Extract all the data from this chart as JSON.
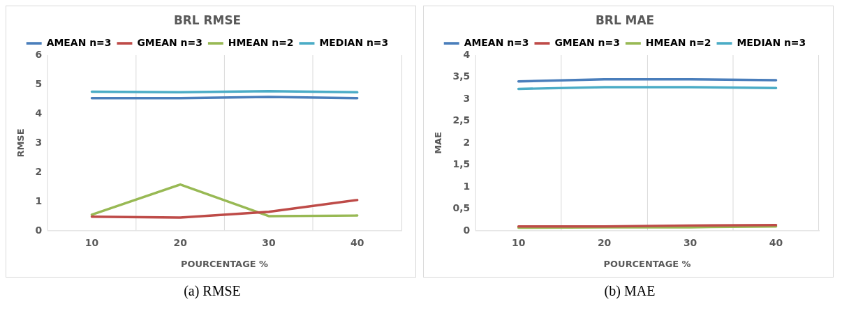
{
  "chart_data": [
    {
      "type": "line",
      "title": "BRL RMSE",
      "xlabel": "POURCENTAGE %",
      "ylabel": "RMSE",
      "categories": [
        "10",
        "20",
        "30",
        "40"
      ],
      "series": [
        {
          "name": "AMEAN n=3",
          "color": "#4a7ebb",
          "values": [
            4.53,
            4.53,
            4.57,
            4.53
          ]
        },
        {
          "name": "GMEAN n=3",
          "color": "#be4b48",
          "values": [
            0.48,
            0.45,
            0.65,
            1.05
          ]
        },
        {
          "name": "HMEAN n=2",
          "color": "#98b954",
          "values": [
            0.55,
            1.58,
            0.5,
            0.52
          ]
        },
        {
          "name": "MEDIAN n=3",
          "color": "#4bacc6",
          "values": [
            4.75,
            4.73,
            4.77,
            4.73
          ]
        }
      ],
      "ylim": [
        0,
        6
      ],
      "yticks": [
        0,
        1,
        2,
        3,
        4,
        5,
        6
      ],
      "grid": "x",
      "legend": "top",
      "marker": "none",
      "annotations": [
        "(a) RMSE"
      ]
    },
    {
      "type": "line",
      "title": "BRL MAE",
      "xlabel": "POURCENTAGE %",
      "ylabel": "MAE",
      "categories": [
        "10",
        "20",
        "30",
        "40"
      ],
      "series": [
        {
          "name": "AMEAN n=3",
          "color": "#4a7ebb",
          "values": [
            3.4,
            3.45,
            3.45,
            3.43
          ]
        },
        {
          "name": "GMEAN n=3",
          "color": "#be4b48",
          "values": [
            0.1,
            0.1,
            0.12,
            0.13
          ]
        },
        {
          "name": "HMEAN n=2",
          "color": "#98b954",
          "values": [
            0.07,
            0.08,
            0.08,
            0.1
          ]
        },
        {
          "name": "MEDIAN n=3",
          "color": "#4bacc6",
          "values": [
            3.23,
            3.27,
            3.27,
            3.25
          ]
        }
      ],
      "ylim": [
        0,
        4
      ],
      "yticks": [
        0,
        {
          "value": 0.5,
          "label": "0,5"
        },
        1,
        {
          "value": 1.5,
          "label": "1,5"
        },
        2,
        {
          "value": 2.5,
          "label": "2,5"
        },
        3,
        {
          "value": 3.5,
          "label": "3,5"
        },
        4
      ],
      "grid": "x",
      "legend": "top",
      "marker": "none",
      "annotations": [
        "(b) MAE"
      ]
    }
  ]
}
